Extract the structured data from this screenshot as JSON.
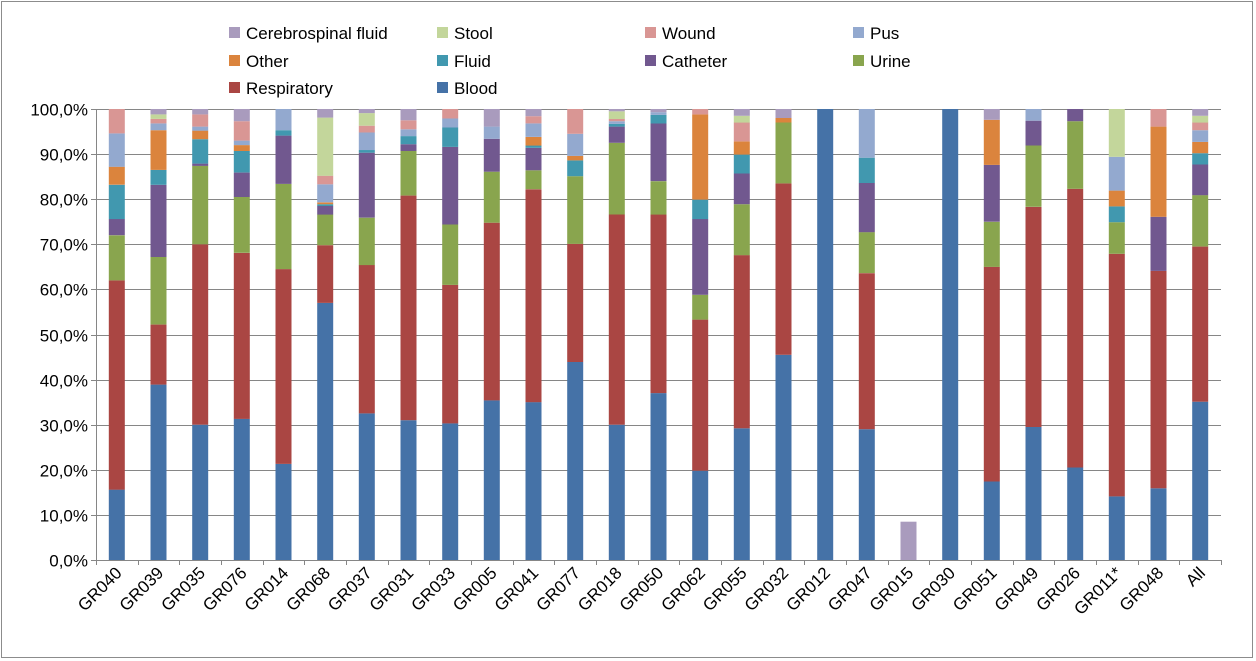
{
  "chart_data": {
    "type": "bar",
    "stacked": true,
    "title": "",
    "xlabel": "",
    "ylabel": "",
    "ylim": [
      0,
      100
    ],
    "ytick_step": 10,
    "ytick_labels": [
      "0,0%",
      "10,0%",
      "20,0%",
      "30,0%",
      "40,0%",
      "50,0%",
      "60,0%",
      "70,0%",
      "80,0%",
      "90,0%",
      "100,0%"
    ],
    "grid": "horizontal",
    "legend_position": "top",
    "categories": [
      "GR040",
      "GR039",
      "GR035",
      "GR076",
      "GR014",
      "GR068",
      "GR037",
      "GR031",
      "GR033",
      "GR005",
      "GR041",
      "GR077",
      "GR018",
      "GR050",
      "GR062",
      "GR055",
      "GR032",
      "GR012",
      "GR047",
      "GR015",
      "GR030",
      "GR051",
      "GR049",
      "GR026",
      "GR011*",
      "GR048",
      "All"
    ],
    "series": [
      {
        "name": "Blood",
        "color": "#4572A7",
        "values": [
          15.6,
          38.9,
          30.0,
          31.3,
          21.3,
          57.0,
          32.5,
          31.0,
          30.3,
          35.4,
          35.0,
          43.9,
          30.0,
          37.0,
          19.8,
          29.2,
          45.5,
          100,
          29.0,
          0,
          100,
          17.4,
          29.5,
          20.5,
          14.1,
          15.9,
          35.1
        ]
      },
      {
        "name": "Respiratory",
        "color": "#AA4643",
        "values": [
          46.4,
          13.3,
          40.0,
          36.8,
          43.2,
          12.8,
          32.9,
          49.8,
          30.7,
          39.4,
          47.2,
          26.2,
          46.6,
          39.6,
          33.5,
          38.4,
          38.0,
          0,
          34.6,
          0,
          0,
          47.6,
          48.8,
          61.8,
          53.8,
          48.2,
          34.4
        ]
      },
      {
        "name": "Urine",
        "color": "#89A54E",
        "values": [
          10.0,
          15.0,
          17.4,
          12.4,
          18.9,
          6.8,
          10.5,
          9.9,
          13.4,
          11.3,
          4.2,
          15.0,
          15.9,
          7.4,
          5.5,
          11.3,
          13.5,
          0,
          9.1,
          0,
          0,
          10.0,
          13.6,
          15.0,
          7.0,
          0,
          11.4
        ]
      },
      {
        "name": "Catheter",
        "color": "#71588F",
        "values": [
          3.6,
          16.0,
          0.5,
          5.4,
          10.7,
          1.9,
          14.4,
          1.5,
          17.2,
          7.3,
          5.0,
          0,
          3.6,
          12.8,
          16.8,
          6.8,
          0,
          0,
          10.9,
          0,
          0,
          12.6,
          5.5,
          2.7,
          0,
          12.0,
          6.8
        ]
      },
      {
        "name": "Fluid",
        "color": "#4198AF",
        "values": [
          7.6,
          3.3,
          5.4,
          4.8,
          1.2,
          0.4,
          0.6,
          1.8,
          4.3,
          0,
          0.5,
          3.5,
          0.6,
          1.9,
          4.3,
          4.2,
          0,
          0,
          5.6,
          0,
          0,
          0,
          0,
          0,
          3.5,
          0,
          2.5
        ]
      },
      {
        "name": "Other",
        "color": "#DB843D",
        "values": [
          4.0,
          8.8,
          1.9,
          1.3,
          0,
          0.4,
          0,
          0,
          0,
          0,
          1.9,
          1.0,
          0,
          0,
          18.9,
          2.9,
          1.0,
          0,
          0,
          0,
          0,
          10.0,
          0,
          0,
          3.5,
          20.0,
          2.5
        ]
      },
      {
        "name": "Pus",
        "color": "#93A9CF",
        "values": [
          7.4,
          1.5,
          0.9,
          1.0,
          4.7,
          4.0,
          3.9,
          1.5,
          2.0,
          2.7,
          3.0,
          4.9,
          0.6,
          0.6,
          0,
          0,
          0,
          0,
          10.8,
          0,
          0,
          0,
          2.6,
          0,
          7.5,
          0,
          2.6
        ]
      },
      {
        "name": "Wound",
        "color": "#D99694",
        "values": [
          5.4,
          1.0,
          2.7,
          4.3,
          0,
          1.9,
          1.5,
          2.0,
          2.1,
          0,
          1.6,
          5.5,
          0.5,
          0,
          1.2,
          4.2,
          0,
          0,
          0,
          0,
          0,
          0,
          0,
          0,
          0,
          3.9,
          1.7
        ]
      },
      {
        "name": "Stool",
        "color": "#C3D69B",
        "values": [
          0,
          1.0,
          0,
          0,
          0,
          12.9,
          2.8,
          0,
          0,
          0,
          0,
          0,
          1.7,
          0,
          0,
          1.5,
          0,
          0,
          0,
          0,
          0,
          0,
          0,
          0,
          10.6,
          0,
          1.5
        ]
      },
      {
        "name": "Cerebrospinal fluid",
        "color": "#A99BBD",
        "values": [
          0,
          1.2,
          1.2,
          2.7,
          0,
          1.9,
          0.9,
          2.5,
          0,
          3.9,
          1.6,
          0,
          0.5,
          0.7,
          0,
          1.5,
          2.0,
          0,
          0,
          8.5,
          0,
          2.4,
          0,
          0,
          0,
          0,
          1.5
        ]
      }
    ],
    "legend_order": [
      [
        "Cerebrospinal fluid",
        "Stool",
        "Wound",
        "Pus"
      ],
      [
        "Other",
        "Fluid",
        "Catheter",
        "Urine"
      ],
      [
        "Respiratory",
        "Blood"
      ]
    ]
  }
}
